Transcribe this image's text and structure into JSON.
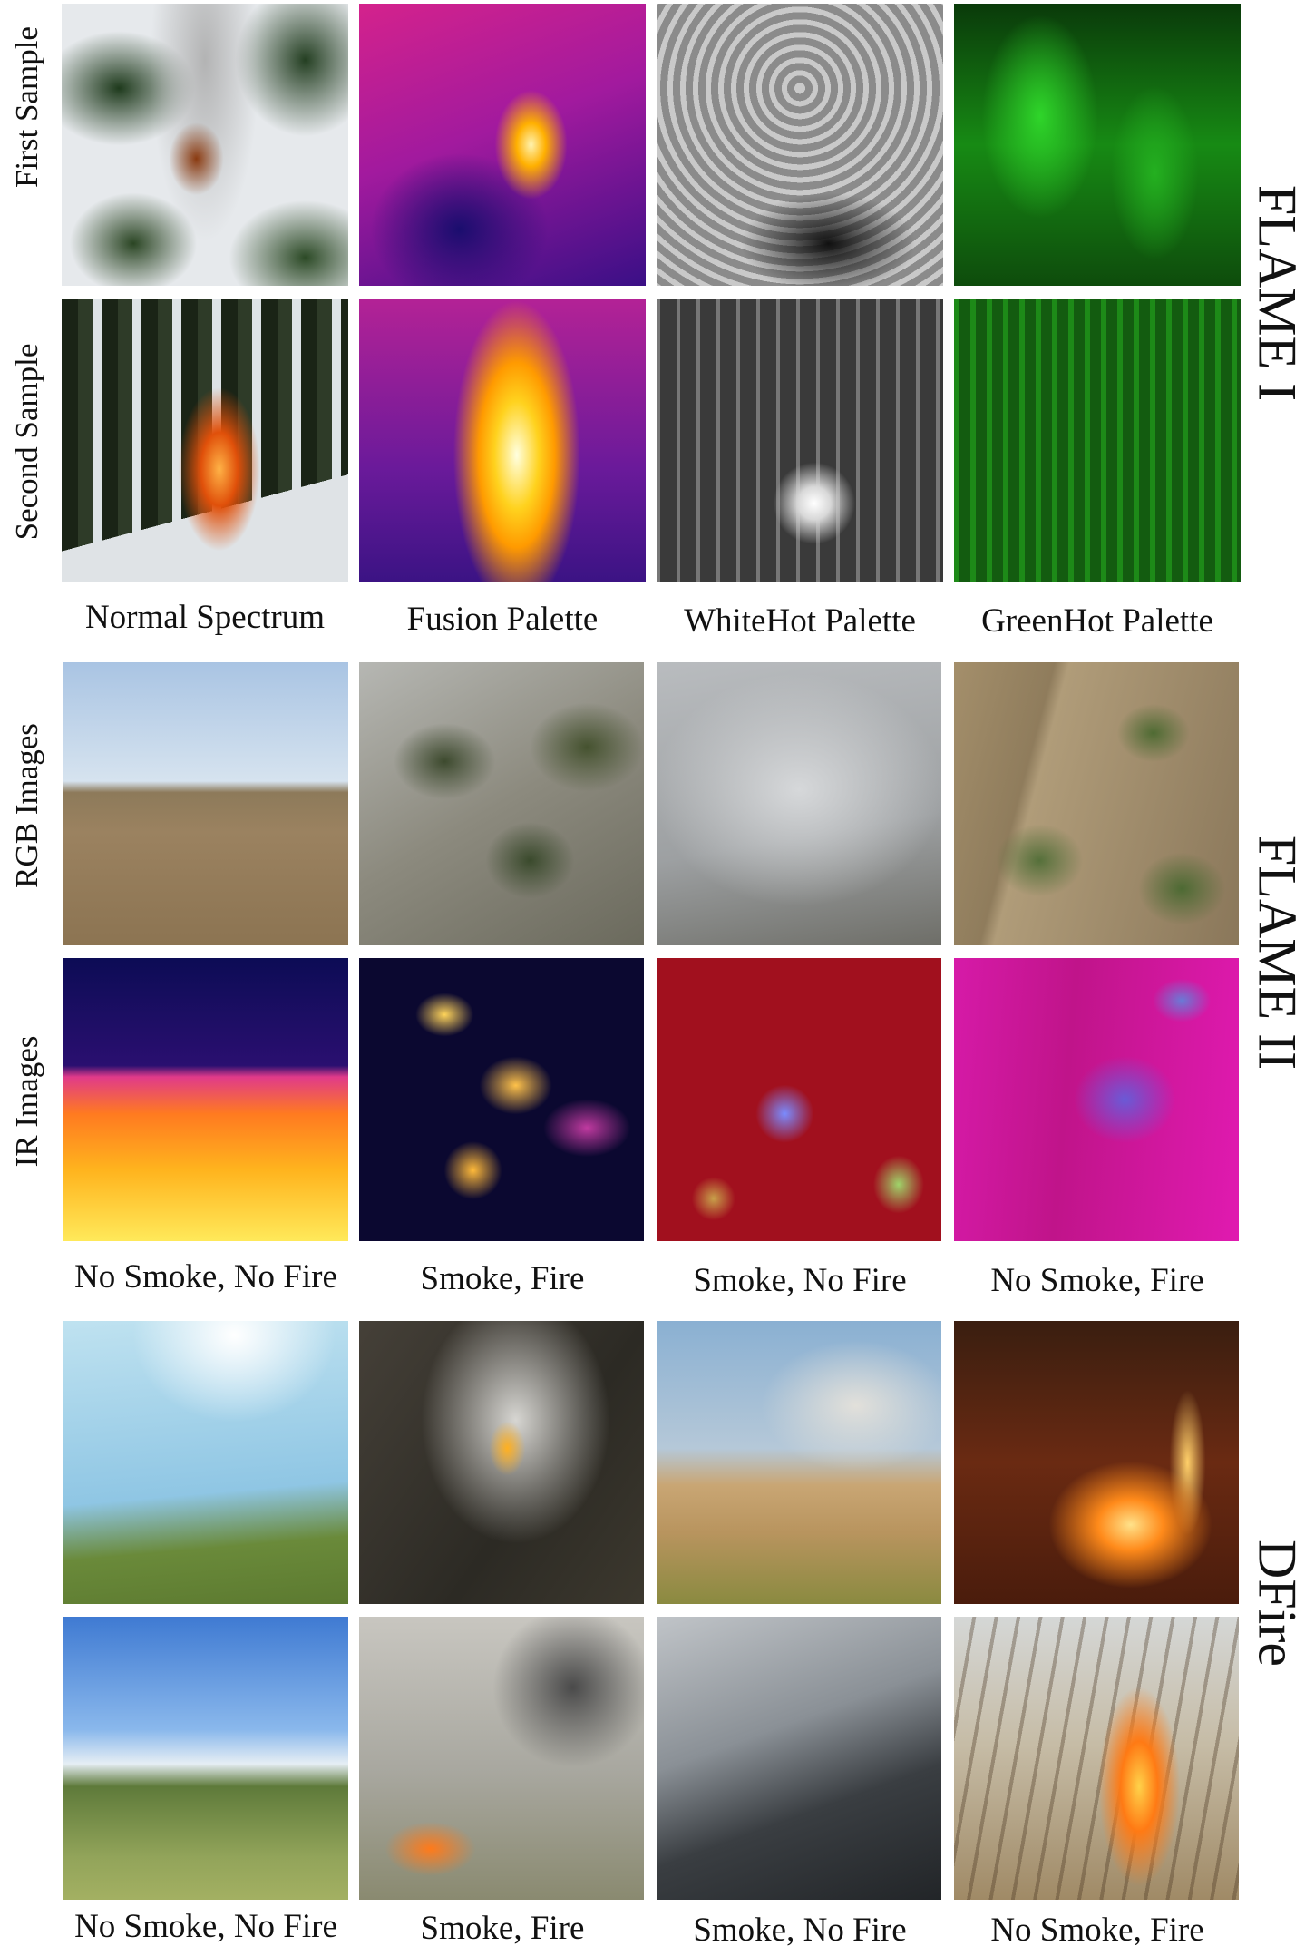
{
  "datasets": {
    "flame1": "FLAME I",
    "flame2": "FLAME II",
    "dfire": "DFire"
  },
  "row_labels": {
    "first_sample": "First Sample",
    "second_sample": "Second Sample",
    "rgb_images": "RGB Images",
    "ir_images": "IR Images"
  },
  "captions": {
    "flame1": [
      "Normal Spectrum",
      "Fusion Palette",
      "WhiteHot Palette",
      "GreenHot Palette"
    ],
    "flame2": [
      "No Smoke, No Fire",
      "Smoke, Fire",
      "Smoke, No Fire",
      "No Smoke, Fire"
    ],
    "dfire": [
      "No Smoke, No Fire",
      "Smoke, Fire",
      "Smoke, No Fire",
      "No Smoke, Fire"
    ]
  }
}
